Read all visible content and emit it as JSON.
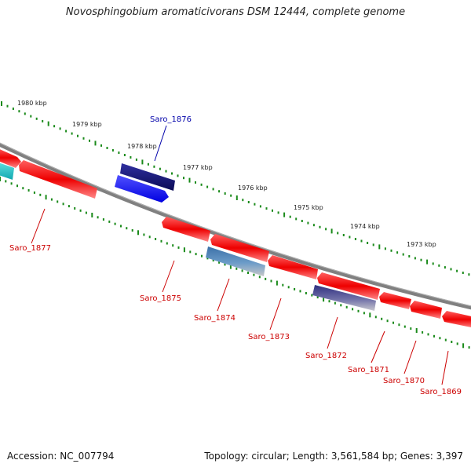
{
  "title": "Novosphingobium aromaticivorans DSM 12444, complete genome",
  "footer": {
    "accession": "Accession: NC_007794",
    "summary": "Topology: circular; Length: 3,561,584 bp; Genes: 3,397"
  },
  "colors": {
    "gene_red": "#e8000a",
    "gene_navy": "#101070",
    "gene_blue": "#1a1aff",
    "gene_cyan": "#20c8c8",
    "gene_steel": "#4a7fb0",
    "gene_slate": "#4a4a90",
    "backbone": "#808080",
    "tick_green": "#1a8a1a",
    "label_red": "#cc0000",
    "label_blue": "#0000aa"
  },
  "scale_labels": [
    "1980 kbp",
    "1979 kbp",
    "1978 kbp",
    "1977 kbp",
    "1976 kbp",
    "1975 kbp",
    "1974 kbp",
    "1973 kbp"
  ],
  "genes": [
    {
      "name": "Saro_1876",
      "color": "gene_navy"
    },
    {
      "name": "Saro_1877",
      "color": "gene_red"
    },
    {
      "name": "Saro_1875",
      "color": "gene_red"
    },
    {
      "name": "Saro_1874",
      "color": "gene_steel"
    },
    {
      "name": "Saro_1873",
      "color": "gene_red"
    },
    {
      "name": "Saro_1872",
      "color": "gene_slate"
    },
    {
      "name": "Saro_1871",
      "color": "gene_red"
    },
    {
      "name": "Saro_1870",
      "color": "gene_red"
    },
    {
      "name": "Saro_1869",
      "color": "gene_red"
    }
  ]
}
